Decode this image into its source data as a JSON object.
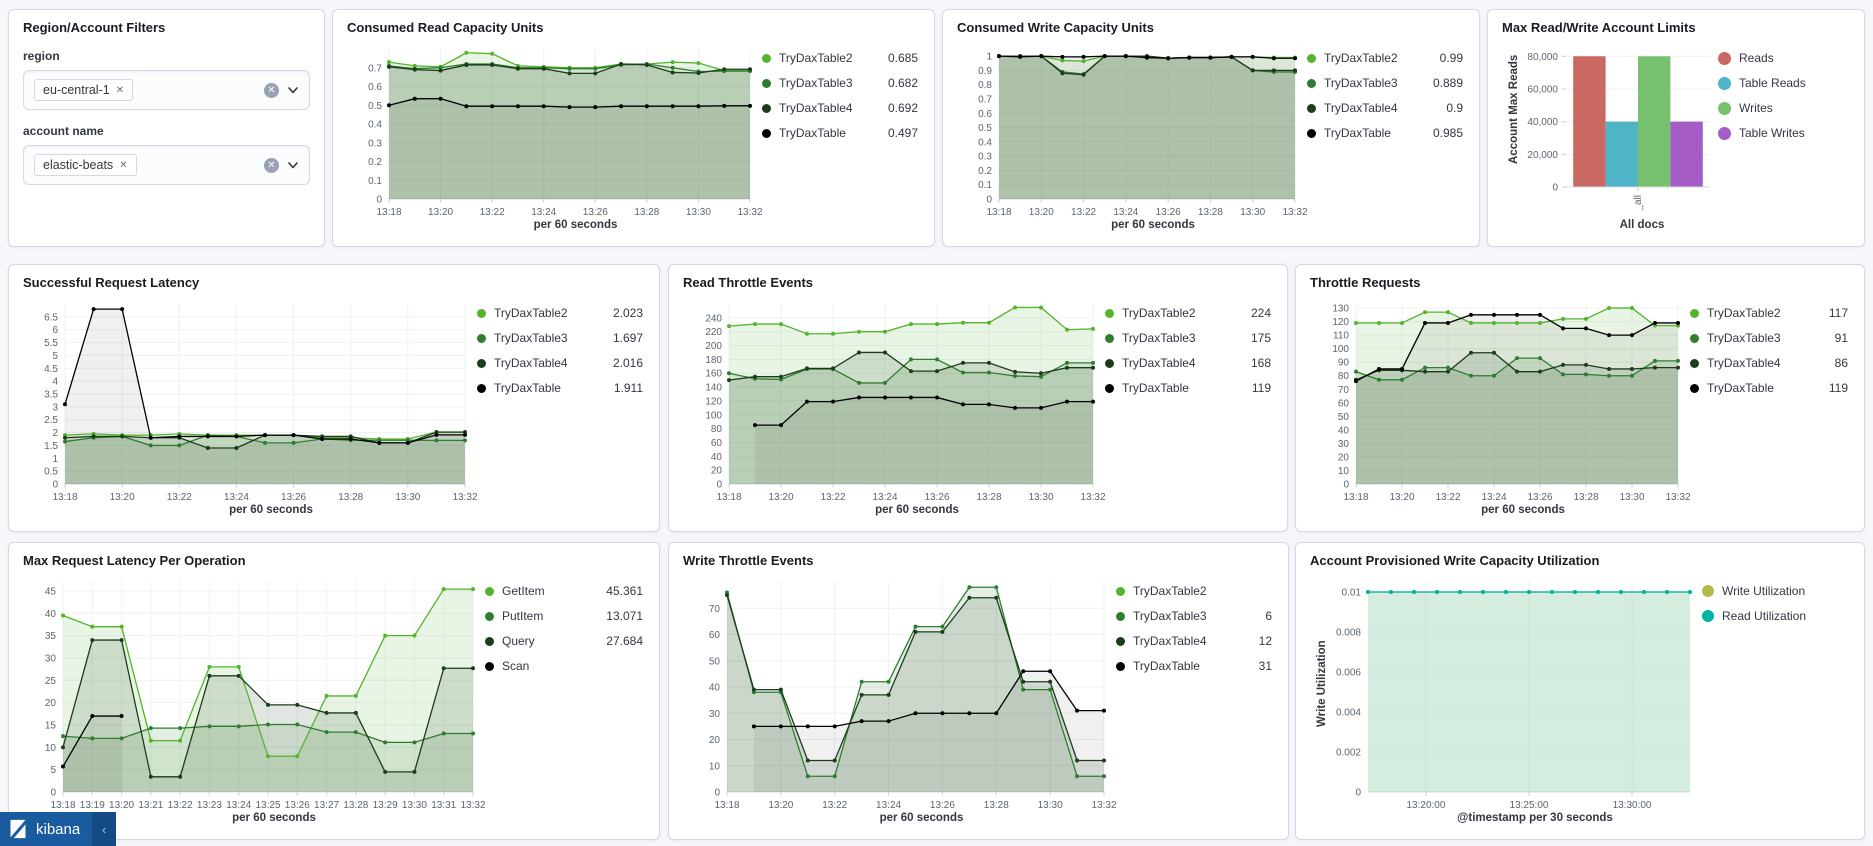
{
  "filters": {
    "title": "Region/Account Filters",
    "fields": [
      {
        "label": "region",
        "pill": "eu-central-1"
      },
      {
        "label": "account name",
        "pill": "elastic-beats"
      }
    ],
    "remove_icon": "✕",
    "clear_icon": "✕"
  },
  "kibana": {
    "brand": "kibana",
    "collapse_icon": "‹"
  },
  "colors": {
    "series_green_bright": "#55b32d",
    "series_green_mid": "#2f7d31",
    "series_green_dark": "#1c3c1c",
    "series_black": "#000000",
    "bar_reads": "#ca6961",
    "bar_table_reads": "#4fb4c5",
    "bar_writes": "#77c06e",
    "bar_table_writes": "#a55cc7",
    "util_write": "#b2ba50",
    "util_read": "#00b3a4"
  },
  "chart_data": [
    {
      "id": "consumed-read",
      "type": "line",
      "title": "Consumed Read Capacity Units",
      "xlabel": "per 60 seconds",
      "xtick_every": 2,
      "ml": 42,
      "lw": 158,
      "ymax": 0.8,
      "yticks": [
        0,
        0.1,
        0.2,
        0.3,
        0.4,
        0.5,
        0.6,
        0.7
      ],
      "x": [
        "13:18",
        "13:19",
        "13:20",
        "13:21",
        "13:22",
        "13:23",
        "13:24",
        "13:25",
        "13:26",
        "13:27",
        "13:28",
        "13:29",
        "13:30",
        "13:31",
        "13:32"
      ],
      "series": [
        {
          "name": "TryDaxTable2",
          "value": "0.685",
          "color": "#55b32d",
          "values": [
            0.73,
            0.71,
            0.705,
            0.78,
            0.775,
            0.71,
            0.705,
            0.7,
            0.7,
            0.72,
            0.72,
            0.73,
            0.725,
            0.685,
            0.685
          ]
        },
        {
          "name": "TryDaxTable3",
          "value": "0.682",
          "color": "#2f7d31",
          "values": [
            0.71,
            0.695,
            0.7,
            0.72,
            0.72,
            0.7,
            0.7,
            0.695,
            0.695,
            0.715,
            0.72,
            0.7,
            0.68,
            0.682,
            0.682
          ]
        },
        {
          "name": "TryDaxTable4",
          "value": "0.692",
          "color": "#1c3c1c",
          "values": [
            0.705,
            0.69,
            0.685,
            0.715,
            0.715,
            0.695,
            0.695,
            0.67,
            0.67,
            0.72,
            0.715,
            0.675,
            0.672,
            0.692,
            0.692
          ]
        },
        {
          "name": "TryDaxTable",
          "value": "0.497",
          "color": "#000000",
          "values": [
            0.5,
            0.535,
            0.535,
            0.495,
            0.495,
            0.495,
            0.495,
            0.49,
            0.49,
            0.495,
            0.495,
            0.495,
            0.495,
            0.497,
            0.497
          ]
        }
      ]
    },
    {
      "id": "consumed-write",
      "type": "line",
      "title": "Consumed Write Capacity Units",
      "xlabel": "per 60 seconds",
      "xtick_every": 2,
      "ml": 42,
      "lw": 158,
      "ymax": 1.05,
      "yticks": [
        0,
        0.1,
        0.2,
        0.3,
        0.4,
        0.5,
        0.6,
        0.7,
        0.8,
        0.9,
        1
      ],
      "x": [
        "13:18",
        "13:19",
        "13:20",
        "13:21",
        "13:22",
        "13:23",
        "13:24",
        "13:25",
        "13:26",
        "13:27",
        "13:28",
        "13:29",
        "13:30",
        "13:31",
        "13:32"
      ],
      "series": [
        {
          "name": "TryDaxTable2",
          "value": "0.99",
          "color": "#55b32d",
          "values": [
            1,
            1,
            1,
            0.97,
            0.965,
            1,
            1,
            0.99,
            0.985,
            0.99,
            0.99,
            0.995,
            0.995,
            0.99,
            0.99
          ]
        },
        {
          "name": "TryDaxTable3",
          "value": "0.889",
          "color": "#2f7d31",
          "values": [
            1,
            1,
            1,
            0.89,
            0.875,
            1,
            1,
            1,
            0.985,
            0.99,
            0.99,
            0.995,
            0.9,
            0.889,
            0.889
          ]
        },
        {
          "name": "TryDaxTable4",
          "value": "0.9",
          "color": "#1c3c1c",
          "values": [
            1,
            1,
            1,
            0.88,
            0.87,
            1,
            1,
            1,
            0.985,
            0.99,
            0.99,
            0.995,
            0.9,
            0.9,
            0.9
          ]
        },
        {
          "name": "TryDaxTable",
          "value": "0.985",
          "color": "#000000",
          "values": [
            1,
            0.995,
            1,
            0.995,
            0.995,
            1,
            1,
            0.99,
            0.985,
            0.99,
            0.99,
            0.995,
            0.995,
            0.985,
            0.985
          ]
        }
      ]
    },
    {
      "id": "max-limits",
      "type": "bar",
      "title": "Max Read/Write Account Limits",
      "xlabel": "All docs",
      "x_tick_label": "_all",
      "ylabel": "Account Max Reads",
      "ml": 64,
      "lw": 132,
      "dot": 13,
      "ymax": 82000,
      "yticks": [
        0,
        20000,
        40000,
        60000,
        80000
      ],
      "series": [
        {
          "name": "Reads",
          "value": "",
          "color": "#ca6961",
          "values": [
            80000
          ]
        },
        {
          "name": "Table Reads",
          "value": "",
          "color": "#4fb4c5",
          "values": [
            40000
          ]
        },
        {
          "name": "Writes",
          "value": "",
          "color": "#77c06e",
          "values": [
            80000
          ]
        },
        {
          "name": "Table Writes",
          "value": "",
          "color": "#a55cc7",
          "values": [
            40000
          ]
        }
      ]
    },
    {
      "id": "successful-request-latency",
      "type": "line",
      "title": "Successful Request Latency",
      "xlabel": "per 60 seconds",
      "xtick_every": 2,
      "ml": 42,
      "lw": 168,
      "ymax": 7,
      "yticks": [
        0,
        0.5,
        1,
        1.5,
        2,
        2.5,
        3,
        3.5,
        4,
        4.5,
        5,
        5.5,
        6,
        6.5
      ],
      "x": [
        "13:18",
        "13:19",
        "13:20",
        "13:21",
        "13:22",
        "13:23",
        "13:24",
        "13:25",
        "13:26",
        "13:27",
        "13:28",
        "13:29",
        "13:30",
        "13:31",
        "13:32"
      ],
      "series": [
        {
          "name": "TryDaxTable2",
          "value": "2.023",
          "color": "#55b32d",
          "values": [
            1.9,
            1.95,
            1.9,
            1.9,
            1.95,
            1.9,
            1.9,
            1.9,
            1.9,
            1.8,
            1.8,
            1.75,
            1.75,
            2.023,
            2.023
          ]
        },
        {
          "name": "TryDaxTable3",
          "value": "1.697",
          "color": "#2f7d31",
          "values": [
            1.65,
            1.8,
            1.85,
            1.5,
            1.5,
            1.9,
            1.85,
            1.6,
            1.6,
            1.75,
            1.7,
            1.7,
            1.7,
            1.697,
            1.697
          ]
        },
        {
          "name": "TryDaxTable4",
          "value": "2.016",
          "color": "#1c3c1c",
          "values": [
            1.8,
            1.85,
            1.85,
            1.8,
            1.8,
            1.4,
            1.4,
            1.9,
            1.9,
            1.85,
            1.85,
            1.6,
            1.6,
            2.016,
            2.016
          ]
        },
        {
          "name": "TryDaxTable",
          "value": "1.911",
          "color": "#000000",
          "values": [
            3.1,
            6.8,
            6.8,
            1.8,
            1.85,
            1.85,
            1.85,
            1.9,
            1.9,
            1.75,
            1.75,
            1.6,
            1.6,
            1.911,
            1.911
          ]
        }
      ]
    },
    {
      "id": "read-throttle-events",
      "type": "line",
      "title": "Read Throttle Events",
      "xlabel": "per 60 seconds",
      "xtick_every": 2,
      "ml": 46,
      "lw": 168,
      "ymax": 260,
      "yticks": [
        0,
        20,
        40,
        60,
        80,
        100,
        120,
        140,
        160,
        180,
        200,
        220,
        240
      ],
      "x": [
        "13:18",
        "13:19",
        "13:20",
        "13:21",
        "13:22",
        "13:23",
        "13:24",
        "13:25",
        "13:26",
        "13:27",
        "13:28",
        "13:29",
        "13:30",
        "13:31",
        "13:32"
      ],
      "series": [
        {
          "name": "TryDaxTable2",
          "value": "224",
          "color": "#55b32d",
          "values": [
            228,
            231,
            231,
            217,
            217,
            220,
            220,
            231,
            231,
            233,
            233,
            255,
            255,
            223,
            224
          ]
        },
        {
          "name": "TryDaxTable3",
          "value": "175",
          "color": "#2f7d31",
          "values": [
            160,
            152,
            151,
            166,
            166,
            146,
            146,
            180,
            180,
            161,
            161,
            156,
            155,
            175,
            175
          ]
        },
        {
          "name": "TryDaxTable4",
          "value": "168",
          "color": "#1c3c1c",
          "values": [
            150,
            155,
            155,
            167,
            167,
            190,
            190,
            163,
            163,
            175,
            175,
            162,
            160,
            168,
            168
          ]
        },
        {
          "name": "TryDaxTable",
          "value": "119",
          "color": "#000000",
          "values": [
            null,
            85,
            85,
            119,
            119,
            125,
            125,
            125,
            125,
            115,
            115,
            110,
            110,
            119,
            119
          ]
        }
      ]
    },
    {
      "id": "throttle-requests",
      "type": "line",
      "title": "Throttle Requests",
      "xlabel": "per 60 seconds",
      "xtick_every": 2,
      "ml": 46,
      "lw": 160,
      "ymax": 133,
      "yticks": [
        0,
        10,
        20,
        30,
        40,
        50,
        60,
        70,
        80,
        90,
        100,
        110,
        120,
        130
      ],
      "x": [
        "13:18",
        "13:19",
        "13:20",
        "13:21",
        "13:22",
        "13:23",
        "13:24",
        "13:25",
        "13:26",
        "13:27",
        "13:28",
        "13:29",
        "13:30",
        "13:31",
        "13:32"
      ],
      "series": [
        {
          "name": "TryDaxTable2",
          "value": "117",
          "color": "#55b32d",
          "values": [
            119,
            119,
            119,
            127,
            127,
            119,
            119,
            119,
            119,
            122,
            122,
            130,
            130,
            117,
            117
          ]
        },
        {
          "name": "TryDaxTable3",
          "value": "91",
          "color": "#2f7d31",
          "values": [
            83,
            77,
            77,
            86,
            86,
            80,
            80,
            93,
            93,
            81,
            81,
            80,
            80,
            91,
            91
          ]
        },
        {
          "name": "TryDaxTable4",
          "value": "86",
          "color": "#1c3c1c",
          "values": [
            77,
            84,
            84,
            83,
            83,
            97,
            97,
            83,
            83,
            88,
            88,
            85,
            85,
            86,
            86
          ]
        },
        {
          "name": "TryDaxTable",
          "value": "119",
          "color": "#000000",
          "values": [
            76,
            85,
            85,
            119,
            119,
            125,
            125,
            125,
            125,
            115,
            115,
            110,
            110,
            119,
            119
          ]
        }
      ]
    },
    {
      "id": "max-request-latency",
      "type": "line",
      "title": "Max Request Latency Per Operation",
      "xlabel": "per 60 seconds",
      "xtick_every": 1,
      "xfs": 9.5,
      "ml": 40,
      "lw": 160,
      "ymax": 47,
      "yticks": [
        0,
        5,
        10,
        15,
        20,
        25,
        30,
        35,
        40,
        45
      ],
      "x": [
        "13:18",
        "13:19",
        "13:20",
        "13:21",
        "13:22",
        "13:23",
        "13:24",
        "13:25",
        "13:26",
        "13:27",
        "13:28",
        "13:29",
        "13:30",
        "13:31",
        "13:32"
      ],
      "series": [
        {
          "name": "GetItem",
          "value": "45.361",
          "color": "#55b32d",
          "values": [
            39.5,
            37,
            37,
            11.5,
            11.5,
            28,
            28,
            8,
            8,
            21.5,
            21.5,
            35,
            35,
            45.4,
            45.4
          ]
        },
        {
          "name": "PutItem",
          "value": "13.071",
          "color": "#2f7d31",
          "values": [
            12.5,
            12,
            12,
            14.3,
            14.3,
            14.7,
            14.7,
            15.1,
            15.1,
            13.4,
            13.4,
            11.1,
            11.1,
            13.1,
            13.1
          ]
        },
        {
          "name": "Query",
          "value": "27.684",
          "color": "#1c3c1c",
          "values": [
            10,
            34,
            34,
            3.4,
            3.4,
            26,
            26,
            19.5,
            19.5,
            17.7,
            17.7,
            4.5,
            4.5,
            27.7,
            27.7
          ]
        },
        {
          "name": "Scan",
          "value": "",
          "color": "#000000",
          "values": [
            5.7,
            17,
            17,
            null,
            null,
            null,
            null,
            null,
            null,
            null,
            null,
            null,
            null,
            null,
            null
          ]
        }
      ]
    },
    {
      "id": "write-throttle-events",
      "type": "line",
      "title": "Write Throttle Events",
      "xlabel": "per 60 seconds",
      "xtick_every": 2,
      "ml": 44,
      "lw": 158,
      "ymax": 80,
      "yticks": [
        0,
        10,
        20,
        30,
        40,
        50,
        60,
        70
      ],
      "x": [
        "13:18",
        "13:19",
        "13:20",
        "13:21",
        "13:22",
        "13:23",
        "13:24",
        "13:25",
        "13:26",
        "13:27",
        "13:28",
        "13:29",
        "13:30",
        "13:31",
        "13:32"
      ],
      "series": [
        {
          "name": "TryDaxTable2",
          "value": "",
          "color": "#55b32d",
          "values": null
        },
        {
          "name": "TryDaxTable3",
          "value": "6",
          "color": "#2f7d31",
          "values": [
            76,
            38,
            38,
            6,
            6,
            42,
            42,
            63,
            63,
            78,
            78,
            39,
            39,
            6,
            6
          ]
        },
        {
          "name": "TryDaxTable4",
          "value": "12",
          "color": "#1c3c1c",
          "values": [
            75,
            39,
            39,
            12,
            12,
            37,
            37,
            61,
            61,
            74,
            74,
            42,
            42,
            12,
            12
          ]
        },
        {
          "name": "TryDaxTable",
          "value": "31",
          "color": "#000000",
          "values": [
            null,
            25,
            25,
            25,
            25,
            27,
            27,
            30,
            30,
            30,
            30,
            46,
            46,
            31,
            31
          ]
        }
      ]
    },
    {
      "id": "account-write-utilization",
      "type": "line",
      "title": "Account Provisioned Write Capacity Utilization",
      "xlabel": "@timestamp per 30 seconds",
      "ylabel": "Write Utilization",
      "ml": 58,
      "lw": 148,
      "dot": 12,
      "ymax": 0.0105,
      "yticks": [
        0,
        0.002,
        0.004,
        0.006,
        0.008,
        0.01
      ],
      "x": [
        "",
        "",
        "",
        "",
        "",
        "",
        "",
        "",
        "",
        "",
        "",
        "",
        "",
        "",
        ""
      ],
      "xticks": [
        {
          "p": 0.18,
          "l": "13:20:00"
        },
        {
          "p": 0.5,
          "l": "13:25:00"
        },
        {
          "p": 0.82,
          "l": "13:30:00"
        }
      ],
      "series": [
        {
          "name": "Write Utilization",
          "value": "",
          "color": "#b2ba50",
          "values": [
            0.01,
            0.01,
            0.01,
            0.01,
            0.01,
            0.01,
            0.01,
            0.01,
            0.01,
            0.01,
            0.01,
            0.01,
            0.01,
            0.01,
            0.01
          ]
        },
        {
          "name": "Read Utilization",
          "value": "",
          "color": "#00b3a4",
          "values": [
            0.01,
            0.01,
            0.01,
            0.01,
            0.01,
            0.01,
            0.01,
            0.01,
            0.01,
            0.01,
            0.01,
            0.01,
            0.01,
            0.01,
            0.01
          ]
        }
      ]
    }
  ]
}
